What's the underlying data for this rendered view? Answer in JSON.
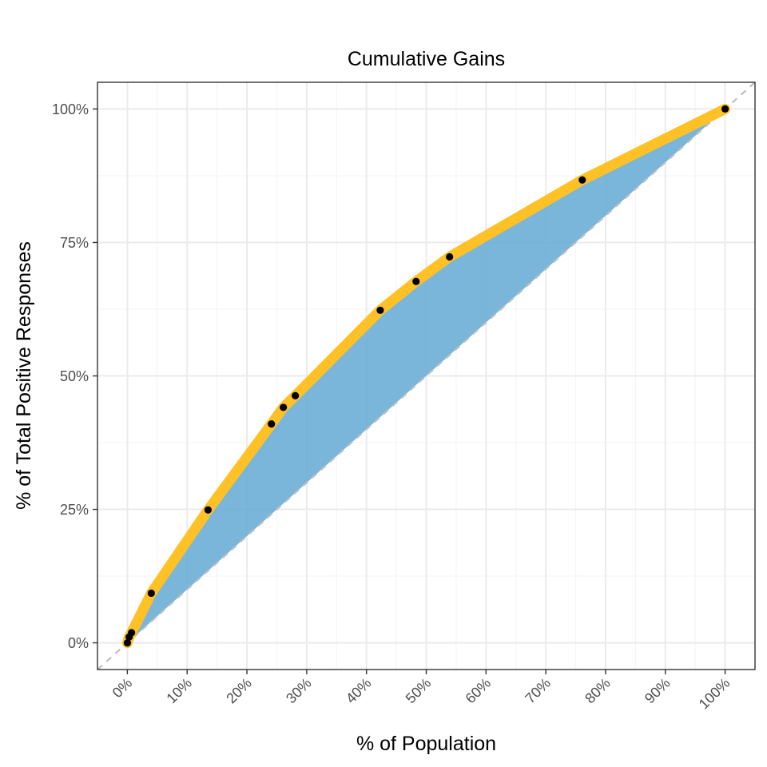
{
  "chart_data": {
    "type": "line",
    "title": "Cumulative Gains",
    "xlabel": "% of Population",
    "ylabel": "% of Total Positive Responses",
    "x_ticks": [
      "0%",
      "10%",
      "20%",
      "30%",
      "40%",
      "50%",
      "60%",
      "70%",
      "80%",
      "90%",
      "100%"
    ],
    "y_ticks": [
      "0%",
      "25%",
      "50%",
      "75%",
      "100%"
    ],
    "xlim": [
      -5,
      105
    ],
    "ylim": [
      -5,
      105
    ],
    "grid": true,
    "series": [
      {
        "x": [
          0,
          0.3,
          0.7,
          4,
          13.5,
          24.1,
          26.1,
          28.1,
          42.3,
          48.3,
          53.9,
          76.1,
          100
        ],
        "y": [
          0,
          1.1,
          1.9,
          9.3,
          24.9,
          41.0,
          44.1,
          46.3,
          62.3,
          67.7,
          72.3,
          86.7,
          100
        ]
      }
    ],
    "baseline": {
      "x": [
        0,
        100
      ],
      "y": [
        0,
        100
      ]
    },
    "colors": {
      "gains_line": "#FFC125",
      "gains_area": "#6BAED6",
      "points": "#000000",
      "baseline": "#BEBEBE",
      "grid_major": "#EBEBEB",
      "grid_minor": "#F5F5F5",
      "panel_border": "#333333"
    }
  }
}
